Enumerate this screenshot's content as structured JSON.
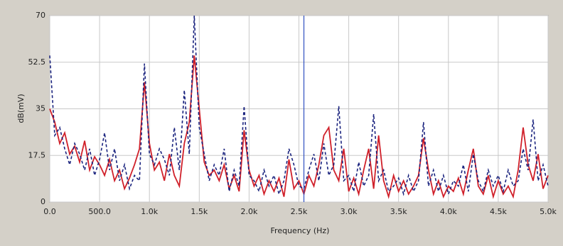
{
  "chart_data": {
    "type": "line",
    "x_label": "Frequency (Hz)",
    "y_label": "dB(mV)",
    "x": [
      0,
      50,
      100,
      150,
      200,
      250,
      300,
      350,
      400,
      450,
      500,
      550,
      600,
      650,
      700,
      750,
      800,
      850,
      900,
      950,
      1000,
      1050,
      1100,
      1150,
      1200,
      1250,
      1300,
      1350,
      1400,
      1450,
      1500,
      1550,
      1600,
      1650,
      1700,
      1750,
      1800,
      1850,
      1900,
      1950,
      2000,
      2050,
      2100,
      2150,
      2200,
      2250,
      2300,
      2350,
      2400,
      2450,
      2500,
      2550,
      2600,
      2650,
      2700,
      2750,
      2800,
      2850,
      2900,
      2950,
      3000,
      3050,
      3100,
      3150,
      3200,
      3250,
      3300,
      3350,
      3400,
      3450,
      3500,
      3550,
      3600,
      3650,
      3700,
      3750,
      3800,
      3850,
      3900,
      3950,
      4000,
      4050,
      4100,
      4150,
      4200,
      4250,
      4300,
      4350,
      4400,
      4450,
      4500,
      4550,
      4600,
      4650,
      4700,
      4750,
      4800,
      4850,
      4900,
      4950,
      5000
    ],
    "series": [
      {
        "color": "#d0202a",
        "dash": false,
        "values": [
          35,
          30,
          22,
          26,
          18,
          21,
          15,
          23,
          12,
          17,
          14,
          10,
          16,
          8,
          12,
          5,
          9,
          14,
          20,
          45,
          22,
          12,
          15,
          8,
          18,
          10,
          6,
          22,
          30,
          55,
          35,
          15,
          10,
          12,
          8,
          14,
          5,
          10,
          4,
          27,
          12,
          6,
          10,
          3,
          8,
          4,
          9,
          2,
          16,
          5,
          8,
          3,
          10,
          6,
          14,
          25,
          28,
          12,
          8,
          20,
          4,
          9,
          3,
          12,
          20,
          5,
          25,
          8,
          2,
          10,
          4,
          8,
          3,
          6,
          10,
          24,
          12,
          3,
          8,
          2,
          6,
          4,
          9,
          3,
          12,
          20,
          6,
          3,
          10,
          2,
          8,
          3,
          6,
          2,
          12,
          28,
          14,
          8,
          18,
          5,
          10
        ]
      },
      {
        "color": "#1a237e",
        "dash": true,
        "values": [
          55,
          25,
          28,
          20,
          14,
          22,
          18,
          12,
          20,
          10,
          16,
          26,
          12,
          20,
          8,
          14,
          5,
          10,
          8,
          52,
          18,
          14,
          20,
          16,
          10,
          28,
          12,
          42,
          18,
          70,
          28,
          18,
          8,
          14,
          10,
          20,
          4,
          12,
          6,
          36,
          10,
          8,
          4,
          12,
          6,
          10,
          3,
          8,
          20,
          14,
          6,
          5,
          12,
          18,
          8,
          22,
          10,
          14,
          36,
          8,
          10,
          4,
          15,
          6,
          10,
          33,
          8,
          12,
          4,
          6,
          9,
          3,
          10,
          4,
          8,
          30,
          6,
          12,
          4,
          10,
          3,
          8,
          6,
          14,
          4,
          18,
          8,
          4,
          12,
          6,
          10,
          4,
          12,
          6,
          8,
          20,
          12,
          31,
          8,
          14,
          6
        ]
      }
    ],
    "cursor_x": 2550,
    "xlim": [
      0,
      5000
    ],
    "xticks": [
      {
        "value": 0,
        "label": "0.0"
      },
      {
        "value": 500,
        "label": "500.0"
      },
      {
        "value": 1000,
        "label": "1.0k"
      },
      {
        "value": 1500,
        "label": "1.5k"
      },
      {
        "value": 2000,
        "label": "2.0k"
      },
      {
        "value": 2500,
        "label": "2.5k"
      },
      {
        "value": 3000,
        "label": "3.0k"
      },
      {
        "value": 3500,
        "label": "3.5k"
      },
      {
        "value": 4000,
        "label": "4.0k"
      },
      {
        "value": 4500,
        "label": "4.5k"
      },
      {
        "value": 5000,
        "label": "5.0k"
      }
    ],
    "ylim": [
      0,
      70
    ],
    "yticks": [
      0,
      17.5,
      35,
      52.5,
      70
    ],
    "grid": true
  }
}
